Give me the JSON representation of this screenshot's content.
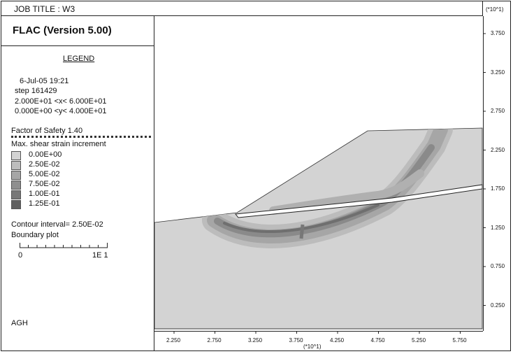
{
  "header": {
    "job_title": "JOB TITLE : W3"
  },
  "panel": {
    "program": "FLAC  (Version  5.00)",
    "legend_title": "LEGEND",
    "date": "6-Jul-05  19:21",
    "step": "step    161429",
    "x_range": "2.000E+01 <x<  6.000E+01",
    "y_range": "0.000E+00 <y<  4.000E+01",
    "factor_of_safety": "Factor of Safety  1.40",
    "contour_title": "Max. shear strain increment",
    "contour_levels": [
      {
        "label": "0.00E+00",
        "color": "#d3d3d3"
      },
      {
        "label": "2.50E-02",
        "color": "#bdbdbd"
      },
      {
        "label": "5.00E-02",
        "color": "#a6a6a6"
      },
      {
        "label": "7.50E-02",
        "color": "#8f8f8f"
      },
      {
        "label": "1.00E-01",
        "color": "#787878"
      },
      {
        "label": "1.25E-01",
        "color": "#5f5f5f"
      }
    ],
    "contour_interval": "Contour interval=  2.50E-02",
    "boundary_plot": "Boundary plot",
    "scale_left": "0",
    "scale_right": "1E  1",
    "footer": "AGH"
  },
  "axes": {
    "y_multiplier": "(*10^1)",
    "x_multiplier": "(*10^1)",
    "y_ticks": [
      "3.750",
      "3.250",
      "2.750",
      "2.250",
      "1.750",
      "1.250",
      "0.750",
      "0.250"
    ],
    "x_ticks": [
      "2.250",
      "2.750",
      "3.250",
      "3.750",
      "4.250",
      "4.750",
      "5.250",
      "5.750"
    ]
  },
  "colors": {
    "frame": "#222222",
    "ground": "#d3d3d3",
    "background": "#ffffff"
  }
}
